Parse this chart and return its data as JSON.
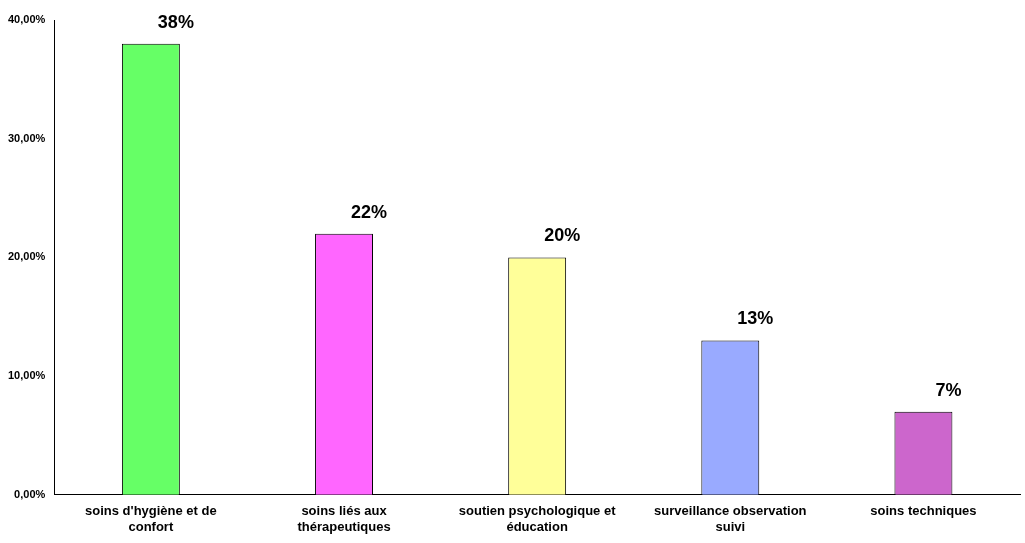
{
  "chart_data": {
    "type": "bar",
    "categories": [
      "soins d'hygiène et de confort",
      "soins liés aux thérapeutiques",
      "soutien psychologique et éducation",
      "surveillance observation suivi",
      "soins techniques"
    ],
    "values": [
      38,
      22,
      20,
      13,
      7
    ],
    "colors": [
      "#66ff66",
      "#ff66ff",
      "#ffff99",
      "#99aaff",
      "#cc66cc"
    ],
    "value_labels": [
      "38%",
      "22%",
      "20%",
      "13%",
      "7%"
    ],
    "ylim": [
      0,
      40
    ],
    "yticks": [
      {
        "value": 0,
        "label": "0,00%"
      },
      {
        "value": 10,
        "label": "10,00%"
      },
      {
        "value": 20,
        "label": "20,00%"
      },
      {
        "value": 30,
        "label": "30,00%"
      },
      {
        "value": 40,
        "label": "40,00%"
      }
    ],
    "grid": false,
    "legend": false
  }
}
